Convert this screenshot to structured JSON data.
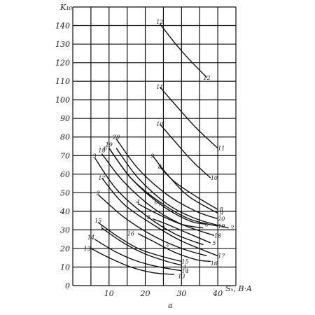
{
  "chart_data": {
    "type": "line",
    "title": "",
    "ylabel": "K₁₀",
    "xlabel": "Sₓ, B·A",
    "caption": "a",
    "xlim": [
      0,
      45
    ],
    "ylim": [
      0,
      150
    ],
    "x_ticks": [
      10,
      20,
      30,
      40
    ],
    "y_ticks": [
      0,
      10,
      20,
      30,
      40,
      50,
      60,
      70,
      80,
      90,
      100,
      110,
      120,
      130,
      140
    ],
    "grid": true,
    "series": [
      {
        "name": "12",
        "points": [
          [
            24,
            141
          ],
          [
            28,
            131
          ],
          [
            32,
            122
          ],
          [
            37,
            112
          ]
        ]
      },
      {
        "name": "11",
        "points": [
          [
            24,
            107
          ],
          [
            28,
            98
          ],
          [
            34,
            85
          ],
          [
            40,
            74
          ]
        ]
      },
      {
        "name": "10",
        "points": [
          [
            24,
            87
          ],
          [
            28,
            78
          ],
          [
            33,
            67
          ],
          [
            38,
            58
          ]
        ]
      },
      {
        "name": "9",
        "points": [
          [
            22,
            70
          ],
          [
            26,
            60
          ],
          [
            32,
            48
          ],
          [
            40,
            39
          ]
        ]
      },
      {
        "name": "8",
        "points": [
          [
            24,
            64
          ],
          [
            28,
            56
          ],
          [
            34,
            48
          ],
          [
            40,
            41
          ]
        ]
      },
      {
        "name": "7",
        "points": [
          [
            12,
            74
          ],
          [
            18,
            58
          ],
          [
            26,
            44
          ],
          [
            34,
            36
          ],
          [
            43,
            31
          ]
        ]
      },
      {
        "name": "20",
        "points": [
          [
            12,
            79
          ],
          [
            18,
            63
          ],
          [
            26,
            49
          ],
          [
            34,
            40
          ],
          [
            40,
            36
          ]
        ]
      },
      {
        "name": "19",
        "points": [
          [
            10,
            74
          ],
          [
            16,
            58
          ],
          [
            24,
            45
          ],
          [
            32,
            36
          ],
          [
            40,
            32
          ]
        ]
      },
      {
        "name": "18",
        "points": [
          [
            8,
            71
          ],
          [
            14,
            56
          ],
          [
            22,
            42
          ],
          [
            30,
            33
          ],
          [
            39,
            27
          ]
        ]
      },
      {
        "name": "6",
        "points": [
          [
            10,
            74
          ],
          [
            16,
            58
          ],
          [
            24,
            44
          ],
          [
            32,
            35
          ],
          [
            37,
            33
          ]
        ]
      },
      {
        "name": "5",
        "points": [
          [
            22,
            36
          ],
          [
            26,
            33
          ],
          [
            32,
            28
          ],
          [
            38,
            23
          ]
        ]
      },
      {
        "name": "4",
        "points": [
          [
            18,
            44
          ],
          [
            24,
            38
          ],
          [
            30,
            33
          ],
          [
            36,
            31
          ]
        ]
      },
      {
        "name": "3",
        "points": [
          [
            6,
            69
          ],
          [
            12,
            52
          ],
          [
            20,
            38
          ],
          [
            28,
            28
          ],
          [
            36,
            22
          ]
        ]
      },
      {
        "name": "17",
        "points": [
          [
            8,
            58
          ],
          [
            14,
            44
          ],
          [
            22,
            33
          ],
          [
            30,
            24
          ],
          [
            40,
            16
          ]
        ]
      },
      {
        "name": "2",
        "points": [
          [
            7,
            49
          ],
          [
            14,
            37
          ],
          [
            22,
            27
          ],
          [
            30,
            20
          ],
          [
            37,
            16
          ]
        ]
      },
      {
        "name": "16",
        "points": [
          [
            18,
            28
          ],
          [
            22,
            24
          ],
          [
            28,
            18
          ],
          [
            34,
            14
          ],
          [
            38,
            13
          ]
        ]
      },
      {
        "name": "15",
        "points": [
          [
            7,
            34
          ],
          [
            12,
            27
          ],
          [
            18,
            20
          ],
          [
            24,
            16
          ],
          [
            30,
            13
          ]
        ]
      },
      {
        "name": "1",
        "points": [
          [
            8,
            31
          ],
          [
            14,
            23
          ],
          [
            20,
            17
          ],
          [
            26,
            13
          ],
          [
            30,
            11
          ]
        ]
      },
      {
        "name": "14",
        "points": [
          [
            6,
            25
          ],
          [
            12,
            18
          ],
          [
            18,
            13
          ],
          [
            24,
            10
          ],
          [
            30,
            8
          ]
        ]
      },
      {
        "name": "13",
        "points": [
          [
            5,
            20
          ],
          [
            10,
            15
          ],
          [
            16,
            10
          ],
          [
            22,
            7
          ],
          [
            28,
            6
          ]
        ]
      }
    ],
    "label_positions": [
      {
        "name": "12",
        "x": 24,
        "y": 142
      },
      {
        "name": "12",
        "x": 37,
        "y": 112
      },
      {
        "name": "11",
        "x": 24,
        "y": 107
      },
      {
        "name": "11",
        "x": 41,
        "y": 74
      },
      {
        "name": "10",
        "x": 24,
        "y": 87
      },
      {
        "name": "10",
        "x": 39,
        "y": 58
      },
      {
        "name": "9",
        "x": 22,
        "y": 70
      },
      {
        "name": "9",
        "x": 41,
        "y": 39
      },
      {
        "name": "8",
        "x": 24,
        "y": 64
      },
      {
        "name": "8",
        "x": 41,
        "y": 41
      },
      {
        "name": "7",
        "x": 44,
        "y": 31
      },
      {
        "name": "7",
        "x": 24,
        "y": 44
      },
      {
        "name": "20",
        "x": 12,
        "y": 80
      },
      {
        "name": "20",
        "x": 41,
        "y": 36
      },
      {
        "name": "19",
        "x": 10,
        "y": 76
      },
      {
        "name": "19",
        "x": 41,
        "y": 32
      },
      {
        "name": "18",
        "x": 8,
        "y": 73
      },
      {
        "name": "18",
        "x": 40,
        "y": 27
      },
      {
        "name": "6",
        "x": 9,
        "y": 74
      },
      {
        "name": "6",
        "x": 23,
        "y": 45
      },
      {
        "name": "6",
        "x": 37,
        "y": 33
      },
      {
        "name": "5",
        "x": 21,
        "y": 37
      },
      {
        "name": "5",
        "x": 39,
        "y": 23
      },
      {
        "name": "4",
        "x": 18,
        "y": 45
      },
      {
        "name": "3",
        "x": 6,
        "y": 70
      },
      {
        "name": "3",
        "x": 25,
        "y": 31
      },
      {
        "name": "17",
        "x": 8,
        "y": 58
      },
      {
        "name": "17",
        "x": 41,
        "y": 16
      },
      {
        "name": "2",
        "x": 7,
        "y": 50
      },
      {
        "name": "2",
        "x": 26,
        "y": 21
      },
      {
        "name": "16",
        "x": 16,
        "y": 28
      },
      {
        "name": "16",
        "x": 39,
        "y": 12
      },
      {
        "name": "15",
        "x": 7,
        "y": 35
      },
      {
        "name": "15",
        "x": 31,
        "y": 13
      },
      {
        "name": "1",
        "x": 8,
        "y": 31
      },
      {
        "name": "1",
        "x": 31,
        "y": 10
      },
      {
        "name": "14",
        "x": 5,
        "y": 26
      },
      {
        "name": "14",
        "x": 31,
        "y": 8
      },
      {
        "name": "13",
        "x": 4,
        "y": 20
      },
      {
        "name": "13",
        "x": 30,
        "y": 5
      }
    ]
  }
}
